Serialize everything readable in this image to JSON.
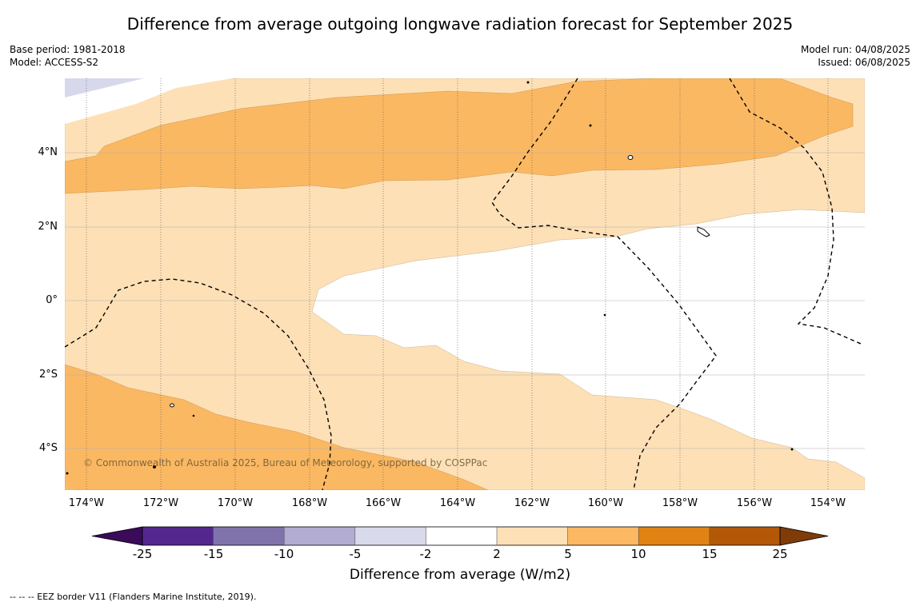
{
  "title": "Difference from average outgoing longwave radiation forecast for September 2025",
  "meta_left": {
    "base_period": "Base period: 1981-2018",
    "model": "Model: ACCESS-S2"
  },
  "meta_right": {
    "model_run": "Model run: 04/08/2025",
    "issued": "Issued: 06/08/2025"
  },
  "map": {
    "lat_labels": [
      "4°N",
      "2°N",
      "0°",
      "2°S",
      "4°S"
    ],
    "lon_labels": [
      "174°W",
      "172°W",
      "170°W",
      "168°W",
      "166°W",
      "164°W",
      "162°W",
      "160°W",
      "158°W",
      "156°W",
      "154°W"
    ],
    "copyright": "© Commonwealth of Australia 2025, Bureau of Meteorology, supported by COSPPac",
    "colors": {
      "band_2_5": "#fde0b6",
      "band_5_10": "#fbb862",
      "band_neg5_neg2": "#d8d8ec",
      "background": "#ffffff"
    }
  },
  "colorbar": {
    "ticks": [
      "-25",
      "-15",
      "-10",
      "-5",
      "-2",
      "2",
      "5",
      "10",
      "15",
      "25"
    ],
    "colors": [
      "#3b0b5a",
      "#54278f",
      "#8073ac",
      "#b2abd2",
      "#d8daeb",
      "#ffffff",
      "#fee0b6",
      "#fdb863",
      "#e08214",
      "#b35806",
      "#7f3b08"
    ],
    "label": "Difference from average (W/m2)"
  },
  "footnote": "-- -- -- EEZ border V11 (Flanders Marine Institute, 2019)."
}
